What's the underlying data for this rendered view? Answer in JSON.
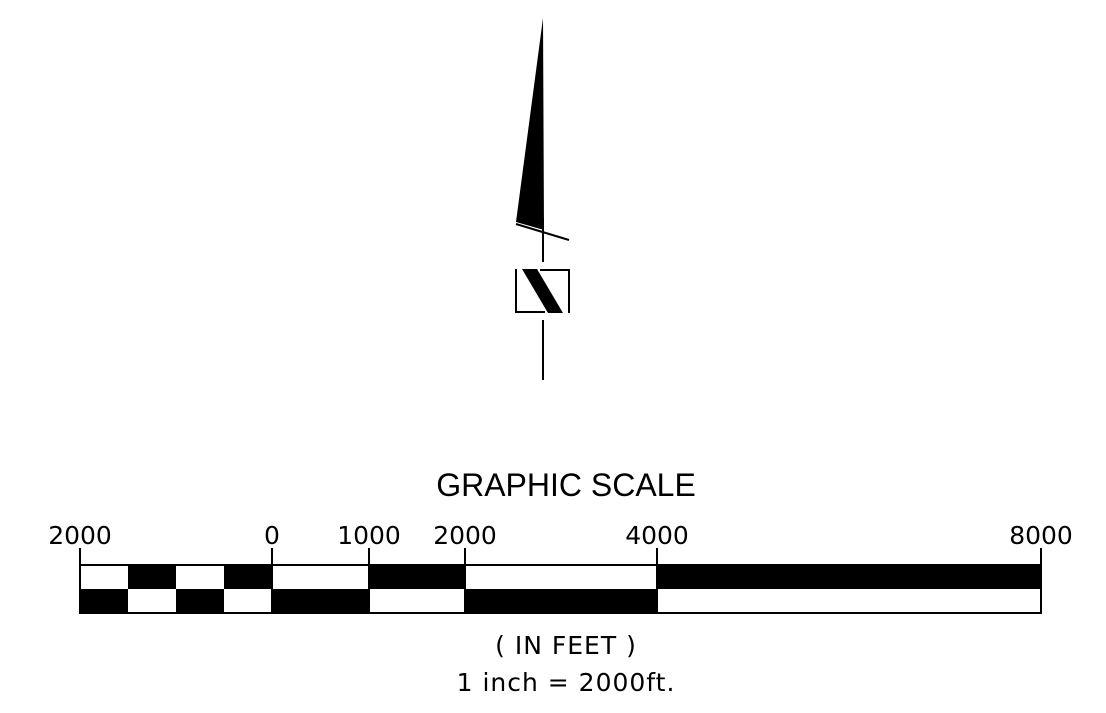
{
  "north_arrow": {
    "icon": "north-arrow-icon",
    "letter": "N"
  },
  "graphic_scale": {
    "title": "GRAPHIC SCALE",
    "unit_label": "( IN FEET )",
    "ratio_label": "1 inch = 2000ft.",
    "tick_labels": [
      "2000",
      "0",
      "1000",
      "2000",
      "4000",
      "8000"
    ],
    "tick_values": [
      -2000,
      0,
      1000,
      2000,
      4000,
      8000
    ],
    "left_sub_segments": 4,
    "segments": [
      {
        "from": -2000,
        "to": -1500,
        "top": "white",
        "bottom": "black"
      },
      {
        "from": -1500,
        "to": -1000,
        "top": "black",
        "bottom": "white"
      },
      {
        "from": -1000,
        "to": -500,
        "top": "white",
        "bottom": "black"
      },
      {
        "from": -500,
        "to": 0,
        "top": "black",
        "bottom": "white"
      },
      {
        "from": 0,
        "to": 1000,
        "top": "white",
        "bottom": "black"
      },
      {
        "from": 1000,
        "to": 2000,
        "top": "black",
        "bottom": "white"
      },
      {
        "from": 2000,
        "to": 4000,
        "top": "white",
        "bottom": "black"
      },
      {
        "from": 4000,
        "to": 8000,
        "top": "black",
        "bottom": "white"
      }
    ],
    "colors": {
      "black": "#000000",
      "white": "#ffffff"
    }
  }
}
